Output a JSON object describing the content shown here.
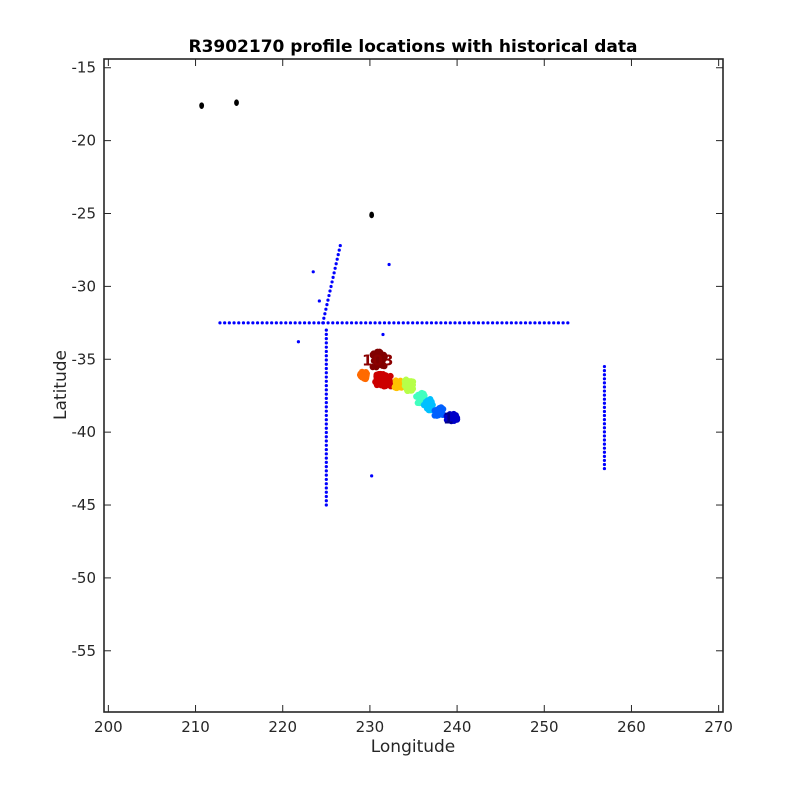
{
  "chart_data": {
    "type": "scatter",
    "title": "R3902170 profile locations with historical data",
    "xlabel": "Longitude",
    "ylabel": "Latitude",
    "xlim": [
      199.5,
      270.5
    ],
    "ylim": [
      -59.2,
      -14.4
    ],
    "xticks": [
      200,
      210,
      220,
      230,
      240,
      250,
      260,
      270
    ],
    "xtick_labels": [
      "200",
      "210",
      "220",
      "230",
      "240",
      "250",
      "260",
      "270"
    ],
    "yticks": [
      -15,
      -20,
      -25,
      -30,
      -35,
      -40,
      -45,
      -50,
      -55
    ],
    "ytick_labels": [
      "-15",
      "-20",
      "-25",
      "-30",
      "-35",
      "-40",
      "-45",
      "-50",
      "-55"
    ],
    "grid": false,
    "legend": "none",
    "colors": {
      "historical": "#0000ff",
      "black_points": "#000000",
      "colormap": "jet"
    },
    "series": [
      {
        "marker": "blue-dot",
        "description_points": "historical profile locations",
        "lines": [
          {
            "from": [
              212.8,
              -32.5
            ],
            "to": [
              252.7,
              -32.5
            ],
            "count": 75
          },
          {
            "from": [
              225.0,
              -33.0
            ],
            "to": [
              225.0,
              -45.0
            ],
            "count": 42
          },
          {
            "from": [
              226.6,
              -27.2
            ],
            "to": [
              224.6,
              -32.5
            ],
            "count": 18
          },
          {
            "from": [
              256.9,
              -35.5
            ],
            "to": [
              256.9,
              -42.5
            ],
            "count": 26
          }
        ],
        "points": [
          [
            223.5,
            -29.0
          ],
          [
            232.2,
            -28.5
          ],
          [
            224.2,
            -31.0
          ],
          [
            221.8,
            -33.8
          ],
          [
            231.5,
            -33.3
          ],
          [
            230.2,
            -43.0
          ]
        ]
      },
      {
        "marker": "black-dot",
        "points": [
          [
            210.7,
            -17.6
          ],
          [
            214.7,
            -17.4
          ],
          [
            230.2,
            -25.1
          ]
        ]
      },
      {
        "marker": "float-trajectory",
        "colormap": "jet",
        "clusters": [
          {
            "lon": 231.0,
            "lat": -35.0,
            "color": "#800000",
            "spread": [
              1.4,
              1.1
            ],
            "count": 45
          },
          {
            "lon": 231.5,
            "lat": -36.4,
            "color": "#cc0000",
            "spread": [
              1.8,
              0.9
            ],
            "count": 55
          },
          {
            "lon": 229.2,
            "lat": -36.1,
            "color": "#ff6a00",
            "spread": [
              0.9,
              0.5
            ],
            "count": 25
          },
          {
            "lon": 233.2,
            "lat": -36.7,
            "color": "#ffc200",
            "spread": [
              1.0,
              0.6
            ],
            "count": 20
          },
          {
            "lon": 234.4,
            "lat": -36.8,
            "color": "#b6ff49",
            "spread": [
              1.2,
              0.8
            ],
            "count": 25
          },
          {
            "lon": 235.8,
            "lat": -37.6,
            "color": "#40ffbf",
            "spread": [
              1.0,
              0.8
            ],
            "count": 22
          },
          {
            "lon": 236.7,
            "lat": -38.1,
            "color": "#00c0ff",
            "spread": [
              1.0,
              0.8
            ],
            "count": 22
          },
          {
            "lon": 237.9,
            "lat": -38.6,
            "color": "#0060ff",
            "spread": [
              1.0,
              0.6
            ],
            "count": 22
          },
          {
            "lon": 239.4,
            "lat": -39.0,
            "color": "#0000c8",
            "spread": [
              1.2,
              0.5
            ],
            "count": 30
          }
        ],
        "labels": [
          {
            "text": "103",
            "lon": 230.9,
            "lat": -35.0,
            "color": "#8b0000"
          },
          {
            "text": "1",
            "lon": 239.0,
            "lat": -39.0,
            "color": "#00008b"
          }
        ]
      }
    ]
  }
}
